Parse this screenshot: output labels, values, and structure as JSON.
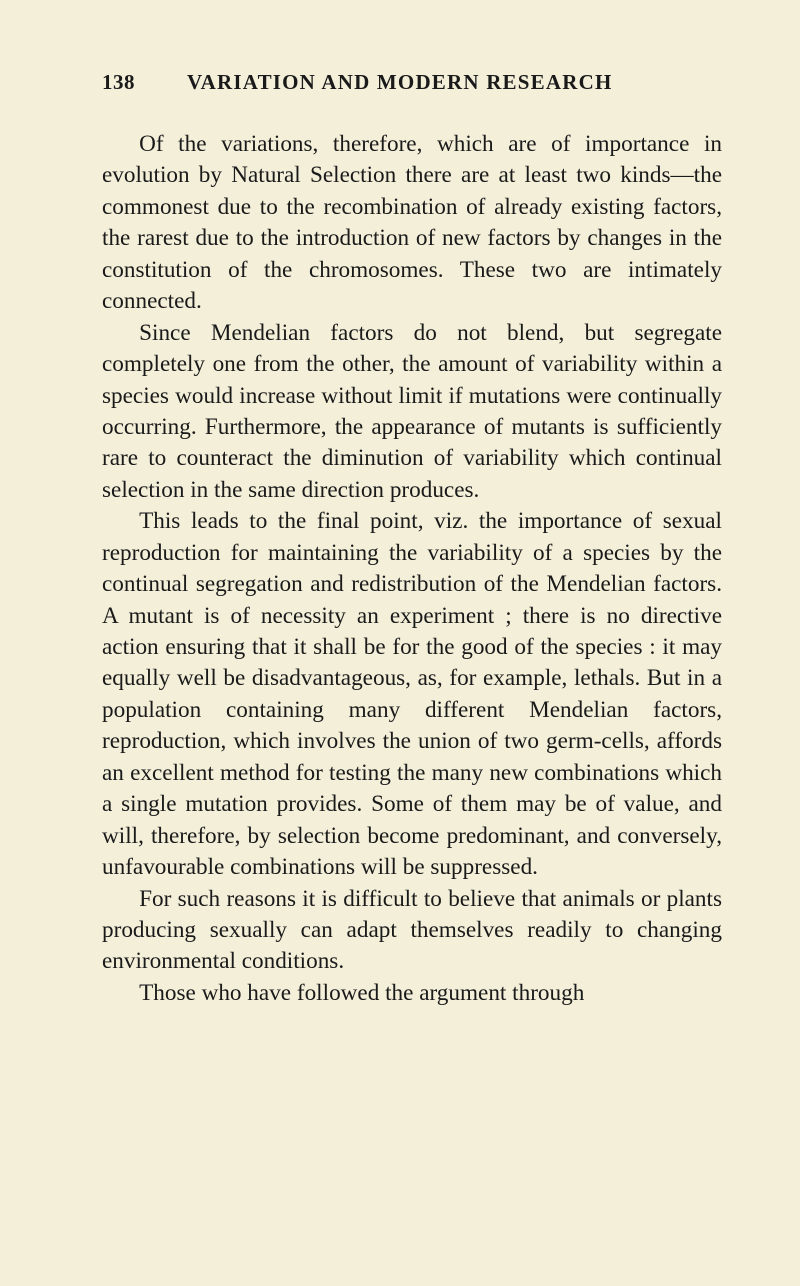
{
  "page_number": "138",
  "running_head": "VARIATION AND MODERN RESEARCH",
  "paragraphs": [
    "Of the variations, therefore, which are of importance in evolution by Natural Selection there are at least two kinds—the commonest due to the recombination of already existing factors, the rarest due to the introduction of new factors by changes in the consti­tution of the chromosomes. These two are intimately connected.",
    "Since Mendelian factors do not blend, but segregate completely one from the other, the amount of vari­ability within a species would increase without limit if mutations were continually occurring. Further­more, the appearance of mutants is sufficiently rare to counteract the diminution of variability which continual selection in the same direction produces.",
    "This leads to the final point, viz. the importance of sexual reproduction for maintaining the variability of a species by the continual segregation and re­distribution of the Mendelian factors. A mutant is of necessity an experiment ; there is no directive action ensuring that it shall be for the good of the species : it may equally well be disadvantageous, as, for example, lethals. But in a population containing many different Mendelian factors, reproduction, which involves the union of two germ-cells, affords an excellent method for testing the many new combinations which a single mutation provides. Some of them may be of value, and will, therefore, by selection become pre­dominant, and conversely, unfavourable combinations will be suppressed.",
    "For such reasons it is difficult to believe that animals or plants producing sexually can adapt themselves readily to changing environmental conditions.",
    "Those who have followed the argument through"
  ]
}
